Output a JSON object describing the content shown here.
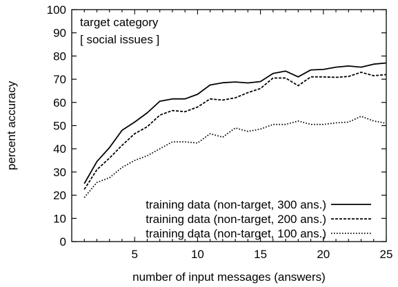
{
  "chart_data": {
    "type": "line",
    "title": "",
    "xlabel": "number of input messages (answers)",
    "ylabel": "percent accuracy",
    "xlim": [
      0,
      25
    ],
    "ylim": [
      0,
      100
    ],
    "x_ticks": [
      5,
      10,
      15,
      20,
      25
    ],
    "y_ticks": [
      0,
      10,
      20,
      30,
      40,
      50,
      60,
      70,
      80,
      90,
      100
    ],
    "grid": false,
    "legend_position": "bottom-right",
    "annotations": [
      "target category",
      "[ social issues ]"
    ],
    "x": [
      1,
      2,
      3,
      4,
      5,
      6,
      7,
      8,
      9,
      10,
      11,
      12,
      13,
      14,
      15,
      16,
      17,
      18,
      19,
      20,
      21,
      22,
      23,
      24,
      25
    ],
    "series": [
      {
        "name": "training data (non-target, 300 ans.)",
        "style": "solid",
        "values": [
          25,
          34.5,
          40.5,
          48,
          51.5,
          55.5,
          60.5,
          61.5,
          61.5,
          63.5,
          67.5,
          68.5,
          68.8,
          68.4,
          69,
          72.5,
          73.5,
          71,
          74,
          74.2,
          75.2,
          75.7,
          75.2,
          76.5,
          77
        ]
      },
      {
        "name": "training data (non-target, 200 ans.)",
        "style": "dashed",
        "values": [
          22.5,
          31,
          36,
          41.5,
          46.5,
          49.5,
          54.5,
          56.5,
          56,
          58,
          61.5,
          61,
          62,
          64.2,
          66,
          70.5,
          70.5,
          67.2,
          71,
          71,
          70.8,
          71.2,
          73,
          71.5,
          72
        ]
      },
      {
        "name": "training data (non-target, 100 ans.)",
        "style": "dotted",
        "values": [
          19,
          25.5,
          27.5,
          32,
          35,
          37,
          40,
          43,
          43,
          42.5,
          46.5,
          45,
          49,
          47.5,
          48.5,
          50.5,
          50.5,
          52,
          50.5,
          50.5,
          51.2,
          51.5,
          54,
          52,
          51
        ]
      }
    ]
  }
}
